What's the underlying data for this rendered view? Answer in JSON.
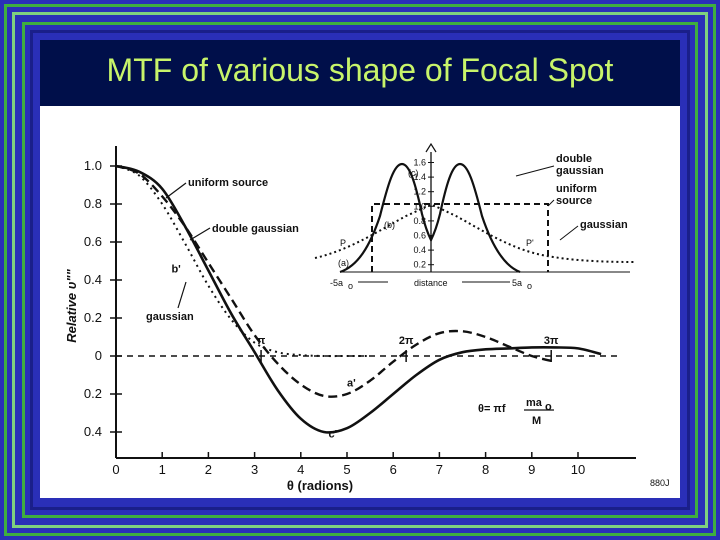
{
  "slide": {
    "title": "MTF of various shape of Focal Spot"
  },
  "chart_data": {
    "type": "line",
    "xlabel": "θ (radions)",
    "ylabel": "Relative υ\"\"",
    "xlim": [
      0,
      10.9
    ],
    "ylim": [
      -0.45,
      1.05
    ],
    "x_ticks": [
      0,
      1,
      2,
      3,
      4,
      5,
      6,
      7,
      8,
      9,
      10
    ],
    "y_ticks": [
      {
        "v": 1.0,
        "label": "1.0"
      },
      {
        "v": 0.8,
        "label": "0.8"
      },
      {
        "v": 0.6,
        "label": "0.6"
      },
      {
        "v": 0.4,
        "label": "0.4"
      },
      {
        "v": 0.2,
        "label": "0.2"
      },
      {
        "v": 0,
        "label": "0"
      },
      {
        "v": -0.2,
        "label": "0.2"
      },
      {
        "v": -0.4,
        "label": "0.4"
      }
    ],
    "grid": false,
    "series": [
      {
        "name": "double gaussian",
        "style": "solid",
        "x": [
          0,
          0.5,
          1,
          1.5,
          2,
          2.5,
          3,
          3.5,
          4,
          4.5,
          5,
          5.5,
          6,
          6.5,
          7,
          7.5,
          8,
          8.5,
          9,
          9.5,
          10,
          10.5
        ],
        "y": [
          1.0,
          0.97,
          0.88,
          0.68,
          0.45,
          0.22,
          0.02,
          -0.18,
          -0.33,
          -0.4,
          -0.38,
          -0.3,
          -0.2,
          -0.1,
          -0.02,
          0.02,
          0.035,
          0.04,
          0.045,
          0.045,
          0.04,
          0.01
        ]
      },
      {
        "name": "uniform source",
        "style": "dashed",
        "x": [
          0,
          0.5,
          1,
          1.5,
          2,
          2.5,
          3,
          3.5,
          4,
          4.5,
          5,
          5.5,
          6,
          6.5,
          7,
          7.5,
          8,
          8.5,
          9,
          9.5
        ],
        "y": [
          1.0,
          0.96,
          0.84,
          0.68,
          0.49,
          0.3,
          0.11,
          -0.04,
          -0.15,
          -0.21,
          -0.2,
          -0.13,
          -0.03,
          0.06,
          0.12,
          0.13,
          0.1,
          0.05,
          0.0,
          -0.03
        ]
      },
      {
        "name": "gaussian",
        "style": "dotted",
        "x": [
          0,
          0.5,
          1,
          1.5,
          2,
          2.5,
          3,
          3.5,
          4,
          4.5,
          5,
          5.5
        ],
        "y": [
          1.0,
          0.95,
          0.8,
          0.59,
          0.37,
          0.19,
          0.07,
          0.02,
          0.005,
          0.0,
          0.0,
          0.0
        ]
      }
    ],
    "point_labels": [
      {
        "text": "b'",
        "x": 1.2,
        "y": 0.44
      },
      {
        "text": "a'",
        "x": 5.0,
        "y": -0.16
      },
      {
        "text": "c'",
        "x": 4.6,
        "y": -0.43
      }
    ],
    "tick_marks_on_zero": [
      {
        "text": "π",
        "x": 3.14
      },
      {
        "text": "2π",
        "x": 6.28
      },
      {
        "text": "3π",
        "x": 9.42
      }
    ],
    "formula": {
      "lhs": "θ= πf",
      "numerator": "ma",
      "sub": "o",
      "denominator": "M"
    },
    "corner_code": "880J",
    "inset": {
      "y_ticks": [
        {
          "v": 1.6,
          "label": "1.6"
        },
        {
          "v": 1.4,
          "label": "1.4"
        },
        {
          "v": 1.2,
          "label": "1.2"
        },
        {
          "v": 1.0,
          "label": "1.0"
        },
        {
          "v": 0.8,
          "label": "0.8"
        },
        {
          "v": 0.6,
          "label": "0.6"
        },
        {
          "v": 0.4,
          "label": "0.4"
        },
        {
          "v": 0.2,
          "label": "0.2"
        }
      ],
      "xlabel": "distance",
      "left_mark": "-5a",
      "left_sub": "o",
      "right_mark": "5a",
      "right_sub": "o",
      "series": [
        {
          "name": "double gaussian",
          "label": "(c)",
          "style": "solid"
        },
        {
          "name": "uniform source",
          "label": "(a)",
          "style": "dashed"
        },
        {
          "name": "gaussian",
          "label": "(b)",
          "style": "dotted"
        }
      ],
      "markers": [
        {
          "text": "P"
        },
        {
          "text": "P'"
        }
      ]
    },
    "legend_annotations": [
      {
        "text": "uniform source"
      },
      {
        "text": "double gaussian"
      },
      {
        "text": "gaussian"
      }
    ],
    "inset_legend": [
      {
        "line1": "double",
        "line2": "gaussian"
      },
      {
        "line1": "uniform",
        "line2": "source"
      },
      {
        "line1": "gaussian",
        "line2": ""
      }
    ]
  }
}
